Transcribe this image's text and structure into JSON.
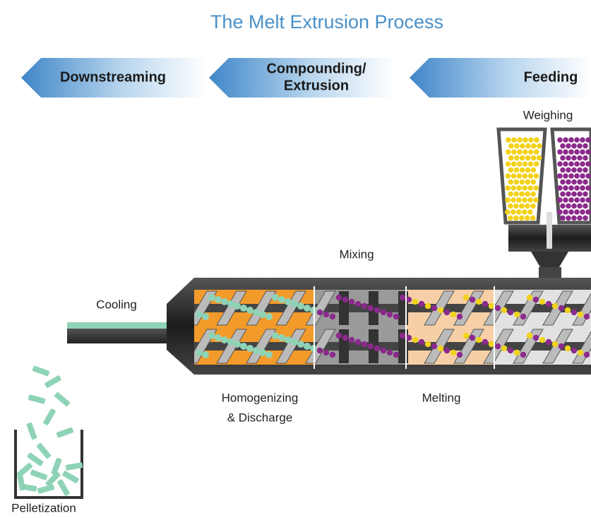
{
  "title": "The Melt Extrusion Process",
  "stages": [
    {
      "lines": [
        "Downstreaming"
      ]
    },
    {
      "lines": [
        "Compounding/",
        "Extrusion"
      ]
    },
    {
      "lines": [
        "Feeding"
      ]
    }
  ],
  "labels": {
    "weighing": "Weighing",
    "mixing": "Mixing",
    "cooling": "Cooling",
    "homogenizing": [
      "Homogenizing",
      "& Discharge"
    ],
    "melting": "Melting",
    "pelletization": "Pelletization"
  }
}
